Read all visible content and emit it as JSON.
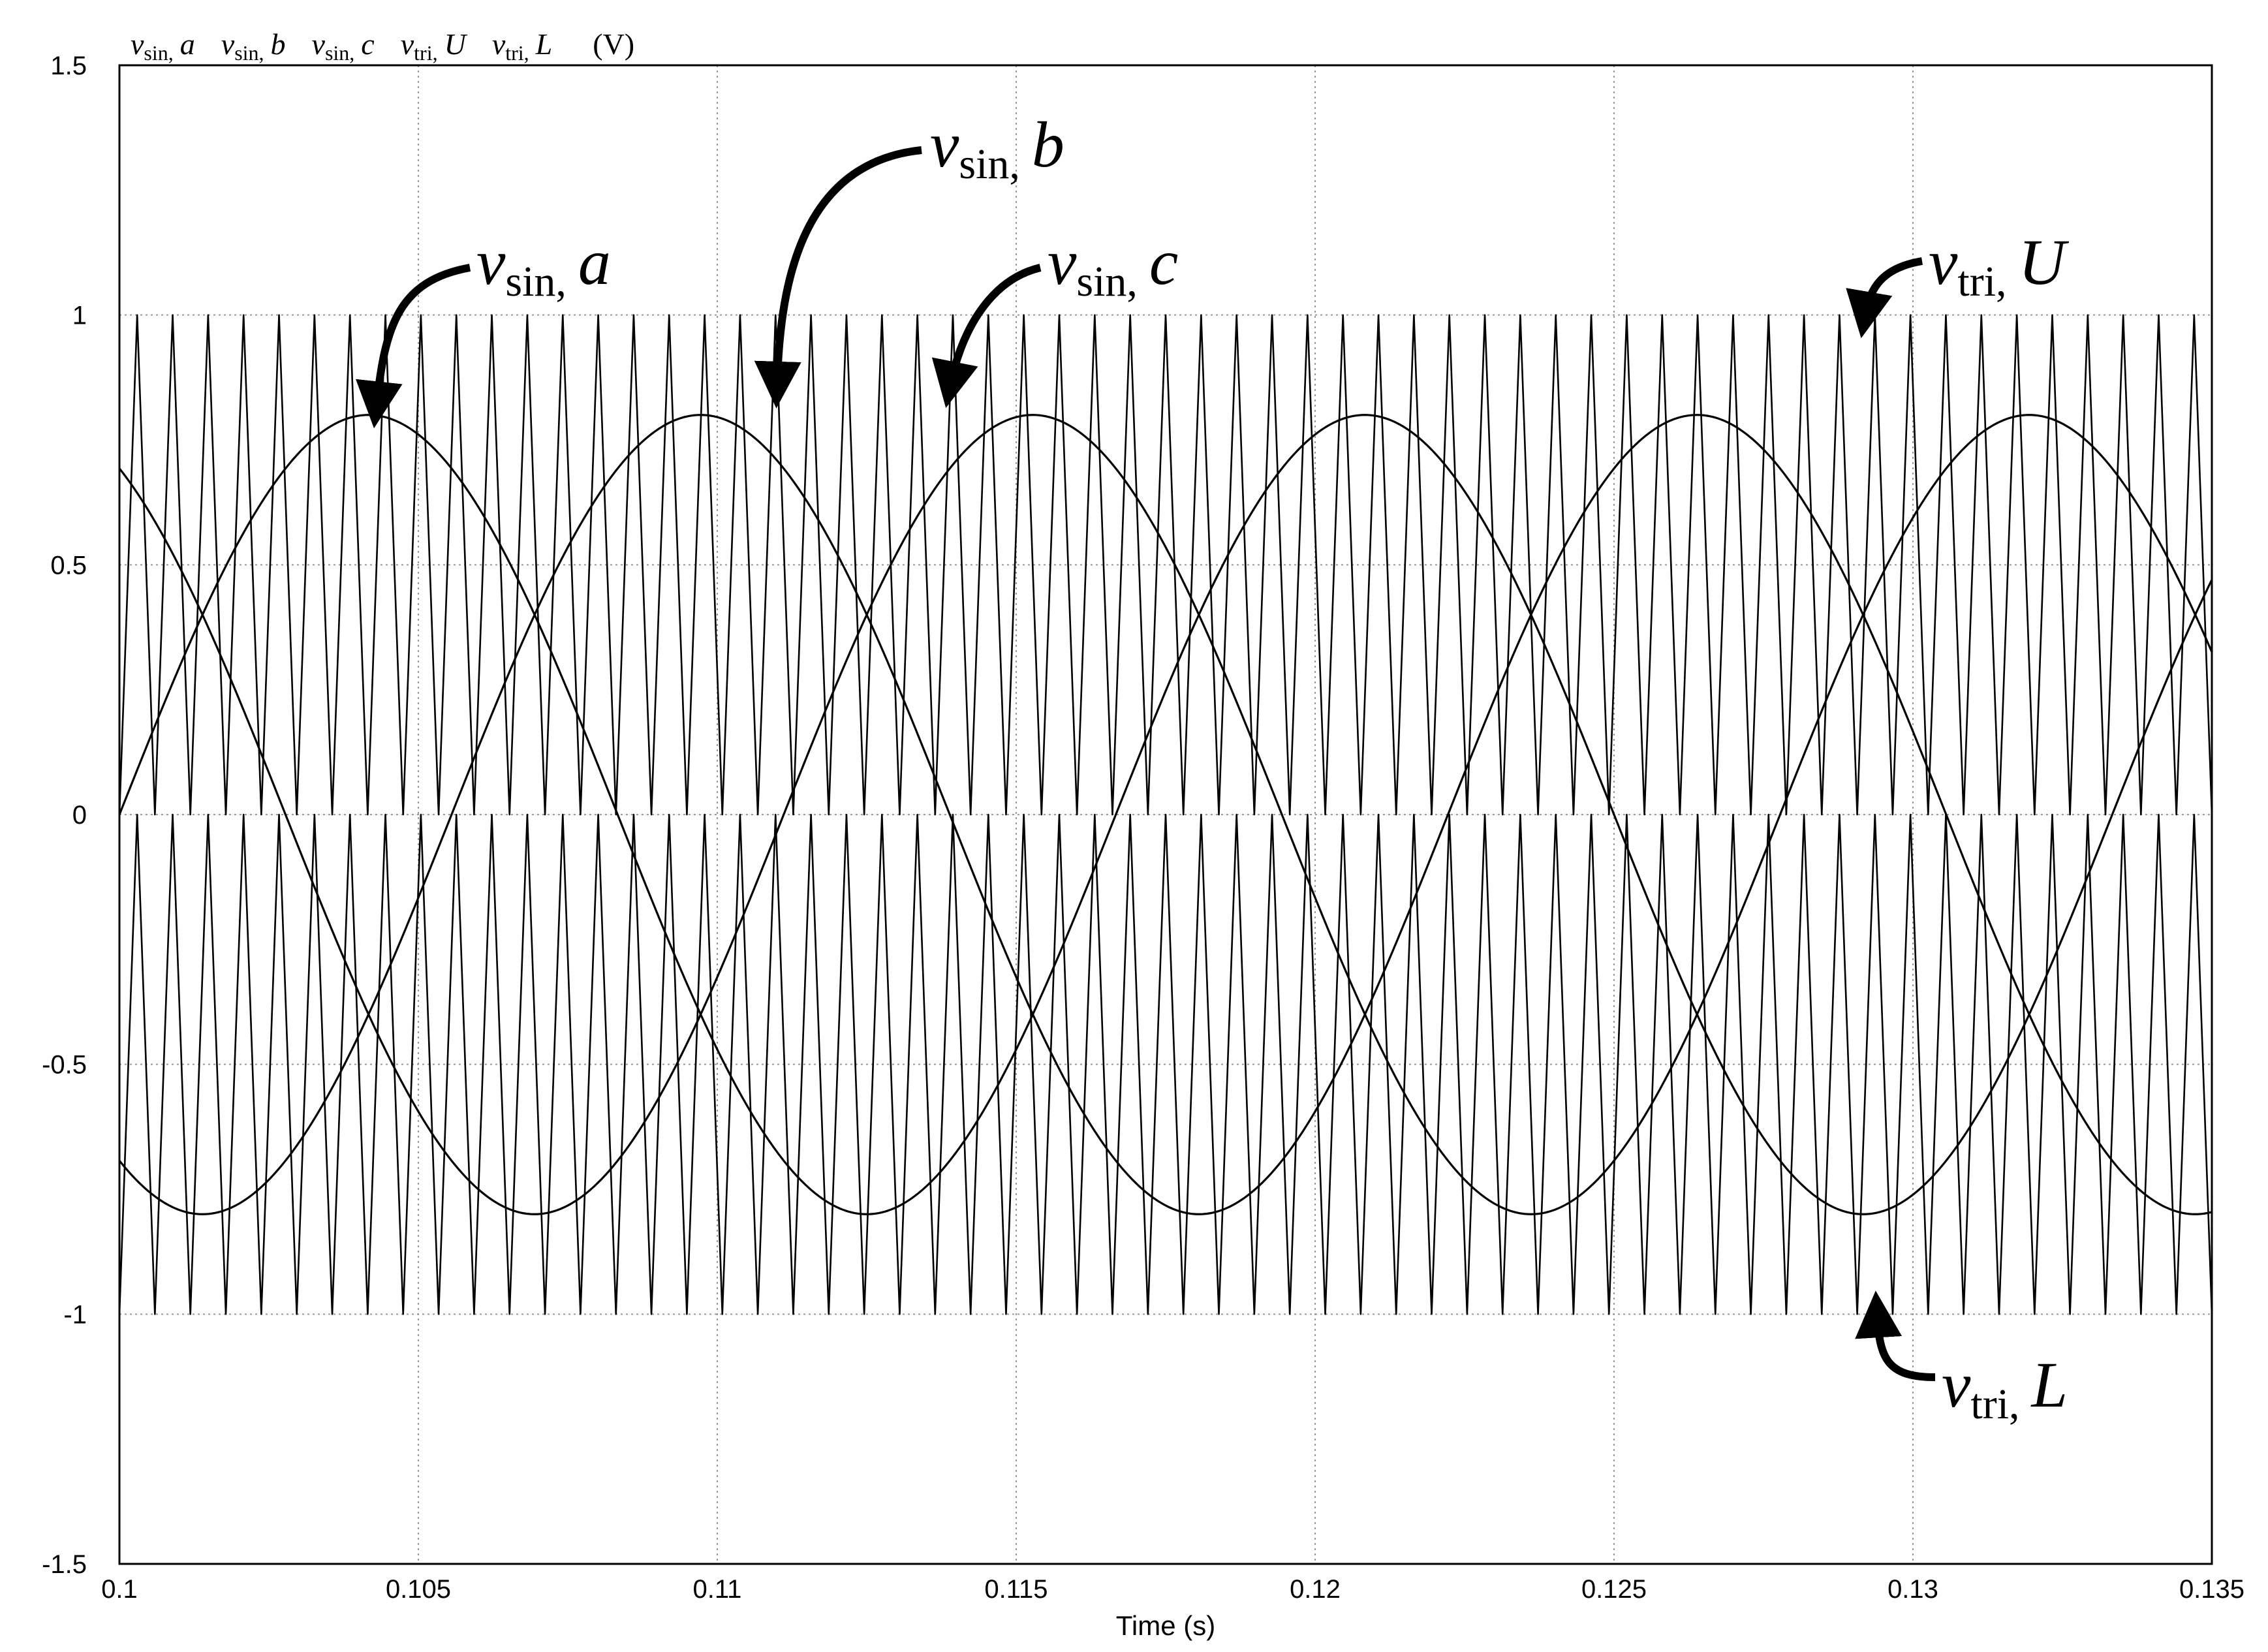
{
  "chart_data": {
    "type": "line",
    "title": "",
    "xlabel": "Time (s)",
    "ylabel": "",
    "xlim": [
      0.1,
      0.135
    ],
    "ylim": [
      -1.5,
      1.5
    ],
    "x_ticks": [
      "0.1",
      "0.105",
      "0.11",
      "0.115",
      "0.12",
      "0.125",
      "0.13",
      "0.135"
    ],
    "y_ticks": [
      "1.5",
      "1",
      "0.5",
      "0",
      "-0.5",
      "-1",
      "-1.5"
    ],
    "grid": true,
    "legend": {
      "position": "top-left",
      "entries": [
        {
          "v": "v",
          "sub": "sin,",
          "it": "a"
        },
        {
          "v": "v",
          "sub": "sin,",
          "it": "b"
        },
        {
          "v": "v",
          "sub": "sin,",
          "it": "c"
        },
        {
          "v": "v",
          "sub": "tri,",
          "it": "U"
        },
        {
          "v": "v",
          "sub": "tri,",
          "it": "L"
        }
      ],
      "unit": "(V)"
    },
    "series": [
      {
        "name": "vsin, a",
        "kind": "sine",
        "amplitude": 0.8,
        "frequency_hz": 60,
        "phase_deg": 0
      },
      {
        "name": "vsin, b",
        "kind": "sine",
        "amplitude": 0.8,
        "frequency_hz": 60,
        "phase_deg": -240
      },
      {
        "name": "vsin, c",
        "kind": "sine",
        "amplitude": 0.8,
        "frequency_hz": 60,
        "phase_deg": -120
      },
      {
        "name": "vtri, U",
        "kind": "triangle",
        "min": 0,
        "max": 1,
        "cycles_in_window": 59
      },
      {
        "name": "vtri, L",
        "kind": "triangle",
        "min": -1,
        "max": 0,
        "cycles_in_window": 59
      }
    ],
    "annotations": [
      {
        "text_v": "v",
        "text_sub": "sin,",
        "text_it": "a",
        "target": [
          0.1043,
          0.82
        ]
      },
      {
        "text_v": "v",
        "text_sub": "sin,",
        "text_it": "b",
        "target": [
          0.111,
          0.86
        ]
      },
      {
        "text_v": "v",
        "text_sub": "sin,",
        "text_it": "c",
        "target": [
          0.1139,
          0.86
        ]
      },
      {
        "text_v": "v",
        "text_sub": "tri,",
        "text_it": "U",
        "target": [
          0.1292,
          1.0
        ]
      },
      {
        "text_v": "v",
        "text_sub": "tri,",
        "text_it": "L",
        "target": [
          0.1294,
          -1.0
        ]
      }
    ]
  }
}
